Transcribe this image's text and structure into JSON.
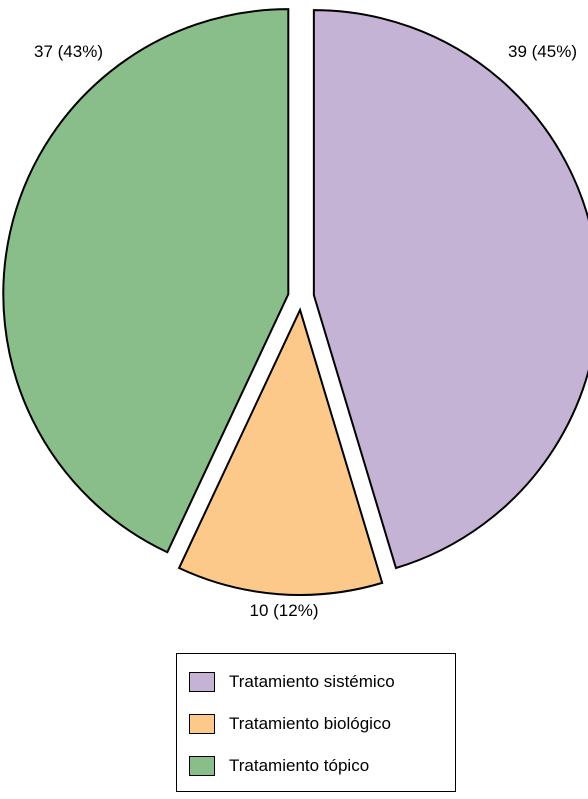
{
  "chart_data": {
    "type": "pie",
    "title": "",
    "slices": [
      {
        "label": "Tratamiento sistémico",
        "value": 39,
        "percent": 45,
        "data_label": "39 (45%)",
        "color": "#c5b3d6"
      },
      {
        "label": "Tratamiento biológico",
        "value": 10,
        "percent": 12,
        "data_label": "10 (12%)",
        "color": "#fdc98b"
      },
      {
        "label": "Tratamiento tópico",
        "value": 37,
        "percent": 43,
        "data_label": "37 (43%)",
        "color": "#89be8a"
      }
    ],
    "exploded": true,
    "legend_position": "bottom"
  }
}
